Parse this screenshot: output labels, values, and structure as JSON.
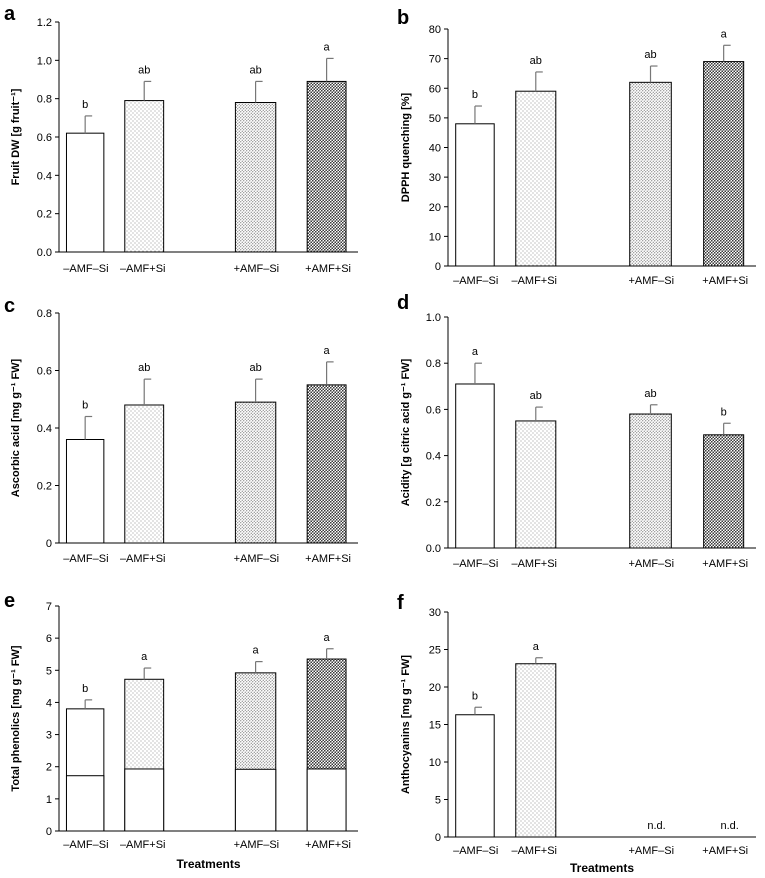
{
  "chart_data": [
    {
      "type": "bar",
      "panel": "a",
      "title": "",
      "xlabel": "",
      "ylabel": "Fruit DW [g fruit⁻¹]",
      "ylim": [
        0,
        1.2
      ],
      "yticks": [
        "0.0",
        "0.2",
        "0.4",
        "0.6",
        "0.8",
        "1.0",
        "1.2"
      ],
      "categories": [
        "–AMF–Si",
        "–AMF+Si",
        "+AMF–Si",
        "+AMF+Si"
      ],
      "values": [
        0.62,
        0.79,
        0.78,
        0.89
      ],
      "errors": [
        0.09,
        0.1,
        0.11,
        0.12
      ],
      "labels": [
        "b",
        "ab",
        "ab",
        "a"
      ]
    },
    {
      "type": "bar",
      "panel": "b",
      "title": "",
      "xlabel": "",
      "ylabel": "DPPH quenching [%]",
      "ylim": [
        0,
        80
      ],
      "yticks": [
        "0",
        "10",
        "20",
        "30",
        "40",
        "50",
        "60",
        "70",
        "80"
      ],
      "categories": [
        "–AMF–Si",
        "–AMF+Si",
        "+AMF–Si",
        "+AMF+Si"
      ],
      "values": [
        48,
        59,
        62,
        69
      ],
      "errors": [
        6,
        6.5,
        5.5,
        5.5
      ],
      "labels": [
        "b",
        "ab",
        "ab",
        "a"
      ]
    },
    {
      "type": "bar",
      "panel": "c",
      "title": "",
      "xlabel": "",
      "ylabel": "Ascorbic acid [mg g⁻¹ FW]",
      "ylim": [
        0,
        0.8
      ],
      "yticks": [
        "0",
        "0.2",
        "0.4",
        "0.6",
        "0.8"
      ],
      "categories": [
        "–AMF–Si",
        "–AMF+Si",
        "+AMF–Si",
        "+AMF+Si"
      ],
      "values": [
        0.36,
        0.48,
        0.49,
        0.55
      ],
      "errors": [
        0.08,
        0.09,
        0.08,
        0.08
      ],
      "labels": [
        "b",
        "ab",
        "ab",
        "a"
      ]
    },
    {
      "type": "bar",
      "panel": "d",
      "title": "",
      "xlabel": "",
      "ylabel": "Acidity [g citric acid g⁻¹ FW]",
      "ylim": [
        0,
        1.0
      ],
      "yticks": [
        "0.0",
        "0.2",
        "0.4",
        "0.6",
        "0.8",
        "1.0"
      ],
      "categories": [
        "–AMF–Si",
        "–AMF+Si",
        "+AMF–Si",
        "+AMF+Si"
      ],
      "values": [
        0.71,
        0.55,
        0.58,
        0.49
      ],
      "errors": [
        0.09,
        0.06,
        0.04,
        0.05
      ],
      "labels": [
        "a",
        "ab",
        "ab",
        "b"
      ]
    },
    {
      "type": "stacked-bar",
      "panel": "e",
      "title": "",
      "xlabel": "Treatments",
      "ylabel": "Total phenolics [mg g⁻¹ FW]",
      "ylim": [
        0,
        7
      ],
      "yticks": [
        "0",
        "1",
        "2",
        "3",
        "4",
        "5",
        "6",
        "7"
      ],
      "categories": [
        "–AMF–Si",
        "–AMF+Si",
        "+AMF–Si",
        "+AMF+Si"
      ],
      "values": [
        3.8,
        4.72,
        4.92,
        5.35
      ],
      "lower_segment": [
        1.72,
        1.93,
        1.92,
        1.93
      ],
      "errors": [
        0.28,
        0.35,
        0.35,
        0.32
      ],
      "labels": [
        "b",
        "a",
        "a",
        "a"
      ]
    },
    {
      "type": "bar",
      "panel": "f",
      "title": "",
      "xlabel": "Treatments",
      "ylabel": "Anthocyanins [mg g⁻¹ FW]",
      "ylim": [
        0,
        30
      ],
      "yticks": [
        "0",
        "5",
        "10",
        "15",
        "20",
        "25",
        "30"
      ],
      "categories": [
        "–AMF–Si",
        "–AMF+Si",
        "+AMF–Si",
        "+AMF+Si"
      ],
      "values": [
        16.3,
        23.1,
        null,
        null
      ],
      "errors": [
        1.0,
        0.8,
        null,
        null
      ],
      "labels": [
        "b",
        "a",
        "n.d.",
        "n.d."
      ]
    }
  ],
  "colors": {
    "axis": "#000000",
    "errorbar": "#777777",
    "bar_white": "#ffffff",
    "dot_light": "#777777",
    "dot_dark": "#333333"
  }
}
